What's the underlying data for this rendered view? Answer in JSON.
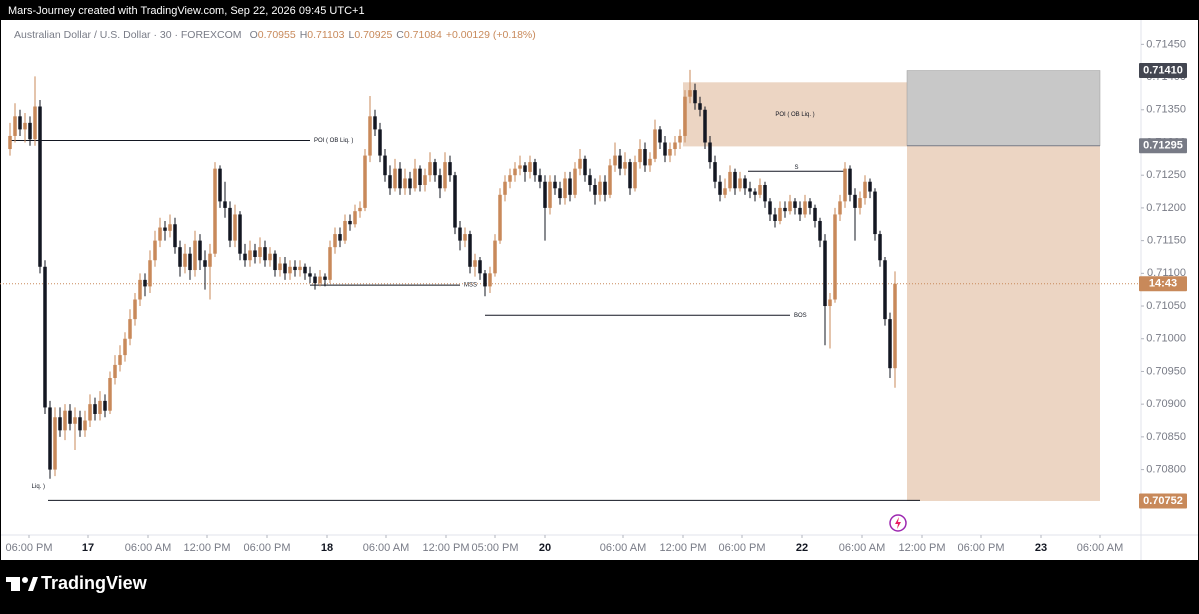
{
  "header": "Mars-Journey created with TradingView.com, Sep 22, 2026 09:45 UTC+1",
  "brand": "TradingView",
  "chart_data": {
    "type": "candlestick",
    "symbol": "Australian Dollar / U.S. Dollar · 30 · FOREXCOM",
    "legend_keys": [
      "O",
      "H",
      "L",
      "C"
    ],
    "change": "+0.00129 (+0.18%)",
    "up_color": "#c8895a",
    "down_color": "#131722",
    "candles": [
      [
        0.7129,
        0.7133,
        0.7128,
        0.7131
      ],
      [
        0.7131,
        0.7136,
        0.713,
        0.7134
      ],
      [
        0.7134,
        0.7135,
        0.7131,
        0.7132
      ],
      [
        0.7132,
        0.71345,
        0.713,
        0.7133
      ],
      [
        0.7133,
        0.7134,
        0.71295,
        0.71305
      ],
      [
        0.71305,
        0.71401,
        0.71295,
        0.71355
      ],
      [
        0.71355,
        0.71365,
        0.711,
        0.7111
      ],
      [
        0.7111,
        0.7112,
        0.70885,
        0.70895
      ],
      [
        0.70895,
        0.70905,
        0.70786,
        0.708
      ],
      [
        0.708,
        0.70895,
        0.7079,
        0.7088
      ],
      [
        0.7088,
        0.70895,
        0.7085,
        0.7086
      ],
      [
        0.7086,
        0.709,
        0.70845,
        0.7089
      ],
      [
        0.7089,
        0.709,
        0.7086,
        0.7087
      ],
      [
        0.7087,
        0.70895,
        0.7083,
        0.7088
      ],
      [
        0.7088,
        0.7089,
        0.7085,
        0.7086
      ],
      [
        0.7086,
        0.7089,
        0.7085,
        0.70875
      ],
      [
        0.70875,
        0.70915,
        0.70865,
        0.709
      ],
      [
        0.709,
        0.7091,
        0.70875,
        0.70885
      ],
      [
        0.70885,
        0.7092,
        0.70875,
        0.70905
      ],
      [
        0.70905,
        0.70915,
        0.7088,
        0.7089
      ],
      [
        0.7089,
        0.7095,
        0.70885,
        0.7094
      ],
      [
        0.7094,
        0.70975,
        0.7093,
        0.7096
      ],
      [
        0.7096,
        0.7099,
        0.7095,
        0.70975
      ],
      [
        0.70975,
        0.7101,
        0.70965,
        0.71
      ],
      [
        0.71,
        0.71045,
        0.7099,
        0.7103
      ],
      [
        0.7103,
        0.7107,
        0.7102,
        0.7106
      ],
      [
        0.7106,
        0.711,
        0.7105,
        0.7109
      ],
      [
        0.7109,
        0.711,
        0.71065,
        0.7108
      ],
      [
        0.7108,
        0.71135,
        0.7107,
        0.7112
      ],
      [
        0.7112,
        0.71165,
        0.7111,
        0.7115
      ],
      [
        0.7115,
        0.71185,
        0.7114,
        0.7117
      ],
      [
        0.7117,
        0.7118,
        0.7115,
        0.71165
      ],
      [
        0.71165,
        0.7119,
        0.71155,
        0.71175
      ],
      [
        0.71175,
        0.71185,
        0.7113,
        0.7114
      ],
      [
        0.7114,
        0.7115,
        0.71095,
        0.7111
      ],
      [
        0.7111,
        0.71145,
        0.711,
        0.7113
      ],
      [
        0.7113,
        0.7114,
        0.7109,
        0.71105
      ],
      [
        0.71105,
        0.71165,
        0.71095,
        0.7115
      ],
      [
        0.7115,
        0.7116,
        0.71105,
        0.7112
      ],
      [
        0.7112,
        0.71135,
        0.71075,
        0.7111
      ],
      [
        0.7111,
        0.71145,
        0.7106,
        0.7113
      ],
      [
        0.7113,
        0.7127,
        0.71125,
        0.7126
      ],
      [
        0.7126,
        0.71265,
        0.712,
        0.7121
      ],
      [
        0.7121,
        0.7124,
        0.71185,
        0.712
      ],
      [
        0.712,
        0.7121,
        0.7114,
        0.7115
      ],
      [
        0.7115,
        0.71205,
        0.7114,
        0.7119
      ],
      [
        0.7119,
        0.71195,
        0.7112,
        0.7113
      ],
      [
        0.7113,
        0.71145,
        0.7111,
        0.7112
      ],
      [
        0.7112,
        0.7115,
        0.7111,
        0.71135
      ],
      [
        0.71135,
        0.71145,
        0.71115,
        0.71125
      ],
      [
        0.71125,
        0.71155,
        0.71115,
        0.7114
      ],
      [
        0.7114,
        0.7115,
        0.7111,
        0.7112
      ],
      [
        0.7112,
        0.7114,
        0.7111,
        0.7113
      ],
      [
        0.7113,
        0.71135,
        0.71095,
        0.71105
      ],
      [
        0.71105,
        0.71125,
        0.71095,
        0.71115
      ],
      [
        0.71115,
        0.71125,
        0.7109,
        0.711
      ],
      [
        0.711,
        0.7112,
        0.7109,
        0.7111
      ],
      [
        0.7111,
        0.7112,
        0.71095,
        0.71105
      ],
      [
        0.71105,
        0.7112,
        0.71095,
        0.7111
      ],
      [
        0.7111,
        0.71115,
        0.7109,
        0.711
      ],
      [
        0.711,
        0.7111,
        0.71085,
        0.71095
      ],
      [
        0.71095,
        0.711,
        0.71075,
        0.71085
      ],
      [
        0.71085,
        0.71105,
        0.7108,
        0.71095
      ],
      [
        0.71095,
        0.711,
        0.7108,
        0.7109
      ],
      [
        0.7109,
        0.7115,
        0.71085,
        0.7114
      ],
      [
        0.7114,
        0.7117,
        0.7113,
        0.7116
      ],
      [
        0.7116,
        0.7117,
        0.7114,
        0.7115
      ],
      [
        0.7115,
        0.7119,
        0.71145,
        0.7118
      ],
      [
        0.7118,
        0.7119,
        0.71165,
        0.71175
      ],
      [
        0.71175,
        0.71205,
        0.7117,
        0.71195
      ],
      [
        0.71195,
        0.7121,
        0.71185,
        0.712
      ],
      [
        0.712,
        0.7129,
        0.71195,
        0.7128
      ],
      [
        0.7128,
        0.71371,
        0.7127,
        0.7134
      ],
      [
        0.7134,
        0.7135,
        0.7131,
        0.7132
      ],
      [
        0.7132,
        0.7133,
        0.7127,
        0.7128
      ],
      [
        0.7128,
        0.7129,
        0.7124,
        0.7125
      ],
      [
        0.7125,
        0.71265,
        0.7122,
        0.7123
      ],
      [
        0.7123,
        0.71275,
        0.71225,
        0.7126
      ],
      [
        0.7126,
        0.7127,
        0.7122,
        0.7123
      ],
      [
        0.7123,
        0.7126,
        0.7122,
        0.71245
      ],
      [
        0.71245,
        0.71255,
        0.7122,
        0.7123
      ],
      [
        0.7123,
        0.71275,
        0.71225,
        0.7126
      ],
      [
        0.7126,
        0.71265,
        0.71225,
        0.71235
      ],
      [
        0.71235,
        0.7126,
        0.71225,
        0.7125
      ],
      [
        0.7125,
        0.71285,
        0.7124,
        0.7127
      ],
      [
        0.7127,
        0.71275,
        0.7124,
        0.7125
      ],
      [
        0.7125,
        0.7126,
        0.71215,
        0.7123
      ],
      [
        0.7123,
        0.71285,
        0.71225,
        0.7127
      ],
      [
        0.7127,
        0.7128,
        0.7124,
        0.7125
      ],
      [
        0.7125,
        0.71255,
        0.7116,
        0.7117
      ],
      [
        0.7117,
        0.7118,
        0.71135,
        0.7115
      ],
      [
        0.7115,
        0.7117,
        0.7114,
        0.7116
      ],
      [
        0.7116,
        0.71165,
        0.711,
        0.7111
      ],
      [
        0.7111,
        0.7113,
        0.71095,
        0.7112
      ],
      [
        0.7112,
        0.71125,
        0.7109,
        0.711
      ],
      [
        0.711,
        0.71105,
        0.71065,
        0.7108
      ],
      [
        0.7108,
        0.7111,
        0.7107,
        0.711
      ],
      [
        0.711,
        0.7116,
        0.71095,
        0.7115
      ],
      [
        0.7115,
        0.7123,
        0.71145,
        0.7122
      ],
      [
        0.7122,
        0.7125,
        0.7121,
        0.7124
      ],
      [
        0.7124,
        0.7126,
        0.7123,
        0.7125
      ],
      [
        0.7125,
        0.7127,
        0.7124,
        0.7126
      ],
      [
        0.7126,
        0.7128,
        0.7125,
        0.71265
      ],
      [
        0.71265,
        0.7127,
        0.7124,
        0.71255
      ],
      [
        0.71255,
        0.7128,
        0.71245,
        0.7127
      ],
      [
        0.7127,
        0.71275,
        0.7124,
        0.7125
      ],
      [
        0.7125,
        0.7126,
        0.7123,
        0.7124
      ],
      [
        0.7124,
        0.7125,
        0.7115,
        0.712
      ],
      [
        0.712,
        0.7125,
        0.7119,
        0.7124
      ],
      [
        0.7124,
        0.7125,
        0.7122,
        0.7123
      ],
      [
        0.7123,
        0.7124,
        0.71205,
        0.71215
      ],
      [
        0.71215,
        0.71255,
        0.71205,
        0.71245
      ],
      [
        0.71245,
        0.71255,
        0.7121,
        0.7122
      ],
      [
        0.7122,
        0.7127,
        0.71215,
        0.7126
      ],
      [
        0.7126,
        0.7129,
        0.7125,
        0.71275
      ],
      [
        0.71275,
        0.7128,
        0.7124,
        0.7125
      ],
      [
        0.7125,
        0.7126,
        0.71225,
        0.71235
      ],
      [
        0.71235,
        0.71245,
        0.71205,
        0.7122
      ],
      [
        0.7122,
        0.7125,
        0.7121,
        0.7124
      ],
      [
        0.7124,
        0.7125,
        0.7121,
        0.7122
      ],
      [
        0.7122,
        0.71275,
        0.71215,
        0.71265
      ],
      [
        0.71265,
        0.713,
        0.71255,
        0.7128
      ],
      [
        0.7128,
        0.7129,
        0.7125,
        0.7126
      ],
      [
        0.7126,
        0.71285,
        0.7125,
        0.7127
      ],
      [
        0.7127,
        0.71275,
        0.7122,
        0.7123
      ],
      [
        0.7123,
        0.7128,
        0.71225,
        0.7127
      ],
      [
        0.7127,
        0.71305,
        0.7126,
        0.7129
      ],
      [
        0.7129,
        0.713,
        0.71255,
        0.71265
      ],
      [
        0.71265,
        0.71285,
        0.71255,
        0.71275
      ],
      [
        0.71275,
        0.71335,
        0.7127,
        0.7132
      ],
      [
        0.7132,
        0.71325,
        0.7129,
        0.713
      ],
      [
        0.713,
        0.7131,
        0.7127,
        0.7128
      ],
      [
        0.7128,
        0.713,
        0.7127,
        0.7129
      ],
      [
        0.7129,
        0.7131,
        0.7128,
        0.713
      ],
      [
        0.713,
        0.7132,
        0.7129,
        0.7131
      ],
      [
        0.7131,
        0.7138,
        0.713,
        0.7137
      ],
      [
        0.7137,
        0.71411,
        0.7136,
        0.7138
      ],
      [
        0.7138,
        0.7139,
        0.7135,
        0.7136
      ],
      [
        0.7136,
        0.7137,
        0.7134,
        0.7135
      ],
      [
        0.7135,
        0.71355,
        0.7129,
        0.713
      ],
      [
        0.713,
        0.7131,
        0.7126,
        0.7127
      ],
      [
        0.7127,
        0.7128,
        0.7123,
        0.7124
      ],
      [
        0.7124,
        0.7125,
        0.7121,
        0.7122
      ],
      [
        0.7122,
        0.71245,
        0.71215,
        0.7123
      ],
      [
        0.7123,
        0.71265,
        0.71225,
        0.71255
      ],
      [
        0.71255,
        0.7126,
        0.7122,
        0.7123
      ],
      [
        0.7123,
        0.71255,
        0.71225,
        0.71245
      ],
      [
        0.71245,
        0.7125,
        0.7122,
        0.7123
      ],
      [
        0.7123,
        0.7124,
        0.71215,
        0.71225
      ],
      [
        0.71225,
        0.7123,
        0.7121,
        0.7122
      ],
      [
        0.7122,
        0.71245,
        0.71215,
        0.71235
      ],
      [
        0.71235,
        0.7124,
        0.712,
        0.7121
      ],
      [
        0.7121,
        0.71215,
        0.7118,
        0.7119
      ],
      [
        0.7119,
        0.712,
        0.7117,
        0.7118
      ],
      [
        0.7118,
        0.7121,
        0.71175,
        0.712
      ],
      [
        0.712,
        0.7121,
        0.71185,
        0.71195
      ],
      [
        0.71195,
        0.7122,
        0.7119,
        0.7121
      ],
      [
        0.7121,
        0.71215,
        0.7119,
        0.712
      ],
      [
        0.712,
        0.7121,
        0.7118,
        0.7119
      ],
      [
        0.7119,
        0.7122,
        0.71185,
        0.7121
      ],
      [
        0.7121,
        0.71215,
        0.7119,
        0.712
      ],
      [
        0.712,
        0.71205,
        0.7117,
        0.7118
      ],
      [
        0.7118,
        0.71185,
        0.7114,
        0.7115
      ],
      [
        0.7115,
        0.7116,
        0.7099,
        0.7105
      ],
      [
        0.7105,
        0.7107,
        0.70985,
        0.7106
      ],
      [
        0.7106,
        0.712,
        0.71055,
        0.7119
      ],
      [
        0.7119,
        0.7122,
        0.7118,
        0.7121
      ],
      [
        0.7121,
        0.7127,
        0.712,
        0.7126
      ],
      [
        0.7126,
        0.71265,
        0.7121,
        0.7122
      ],
      [
        0.7122,
        0.7123,
        0.7115,
        0.712
      ],
      [
        0.712,
        0.71225,
        0.7119,
        0.71215
      ],
      [
        0.71215,
        0.7125,
        0.71205,
        0.7124
      ],
      [
        0.7124,
        0.71245,
        0.71215,
        0.71225
      ],
      [
        0.71225,
        0.7123,
        0.7115,
        0.7116
      ],
      [
        0.7116,
        0.71165,
        0.7111,
        0.7112
      ],
      [
        0.7112,
        0.71125,
        0.7102,
        0.7103
      ],
      [
        0.7103,
        0.7104,
        0.7094,
        0.70955
      ],
      [
        0.70955,
        0.71103,
        0.70925,
        0.71084
      ]
    ],
    "xlim": [
      -2,
      226
    ],
    "xticks": [
      {
        "value": 3.8,
        "label": "06:00 PM"
      },
      {
        "value": 15.6,
        "label": "17"
      },
      {
        "value": 27.6,
        "label": "06:00 AM"
      },
      {
        "value": 39.4,
        "label": "12:00 PM"
      },
      {
        "value": 51.4,
        "label": "06:00 PM"
      },
      {
        "value": 63.4,
        "label": "18"
      },
      {
        "value": 75.2,
        "label": "06:00 AM"
      },
      {
        "value": 87.2,
        "label": "12:00 PM"
      },
      {
        "value": 97,
        "label": "05:00 PM"
      },
      {
        "value": 107,
        "label": "20"
      },
      {
        "value": 122.6,
        "label": "06:00 AM"
      },
      {
        "value": 134.6,
        "label": "12:00 PM"
      },
      {
        "value": 146.4,
        "label": "06:00 PM"
      },
      {
        "value": 158.4,
        "label": "22"
      },
      {
        "value": 170.4,
        "label": "06:00 AM"
      },
      {
        "value": 182.4,
        "label": "12:00 PM"
      },
      {
        "value": 194.2,
        "label": "06:00 PM"
      },
      {
        "value": 206.2,
        "label": "23"
      },
      {
        "value": 218,
        "label": "06:00 AM"
      }
    ],
    "ylim": [
      0.707,
      0.71475
    ],
    "yticks": [
      {
        "value": 0.7145,
        "label": "0.71450"
      },
      {
        "value": 0.714,
        "label": "0.71400"
      },
      {
        "value": 0.7135,
        "label": "0.71350"
      },
      {
        "value": 0.713,
        "label": "0.71300"
      },
      {
        "value": 0.7125,
        "label": "0.71250"
      },
      {
        "value": 0.712,
        "label": "0.71200"
      },
      {
        "value": 0.7115,
        "label": "0.71150"
      },
      {
        "value": 0.711,
        "label": "0.71100"
      },
      {
        "value": 0.7105,
        "label": "0.71050"
      },
      {
        "value": 0.71,
        "label": "0.71000"
      },
      {
        "value": 0.7095,
        "label": "0.70950"
      },
      {
        "value": 0.709,
        "label": "0.70900"
      },
      {
        "value": 0.7085,
        "label": "0.70850"
      },
      {
        "value": 0.708,
        "label": "0.70800"
      }
    ],
    "countdown": "14:43",
    "zones": [
      {
        "label": "POI ( OB Liq. )",
        "x": [
          134.6,
          179.4
        ],
        "y": [
          0.71294,
          0.71392
        ]
      }
    ],
    "lines": [
      {
        "label": "POI ( OB Liq. )",
        "value": 0.71303,
        "x": [
          0,
          60
        ],
        "label_at": "end"
      },
      {
        "label": "MSS",
        "value": 0.71082,
        "x": [
          60,
          90
        ],
        "label_at": "end"
      },
      {
        "label": "BOS",
        "value": 0.71036,
        "x": [
          95,
          156
        ],
        "label_at": "end"
      },
      {
        "label": "S",
        "value": 0.71256,
        "x": [
          147.6,
          167
        ],
        "label_at": "middle"
      },
      {
        "label": "Liq. )",
        "value": 0.70753,
        "x": [
          7.6,
          182
        ],
        "label_at": "start"
      }
    ],
    "position": {
      "x": [
        179.4,
        218
      ],
      "stop": {
        "value": 0.7141,
        "label": "0.71410"
      },
      "entry": {
        "value": 0.71295,
        "label": "0.71295"
      },
      "target": {
        "value": 0.70752,
        "label": "0.70752"
      }
    }
  }
}
